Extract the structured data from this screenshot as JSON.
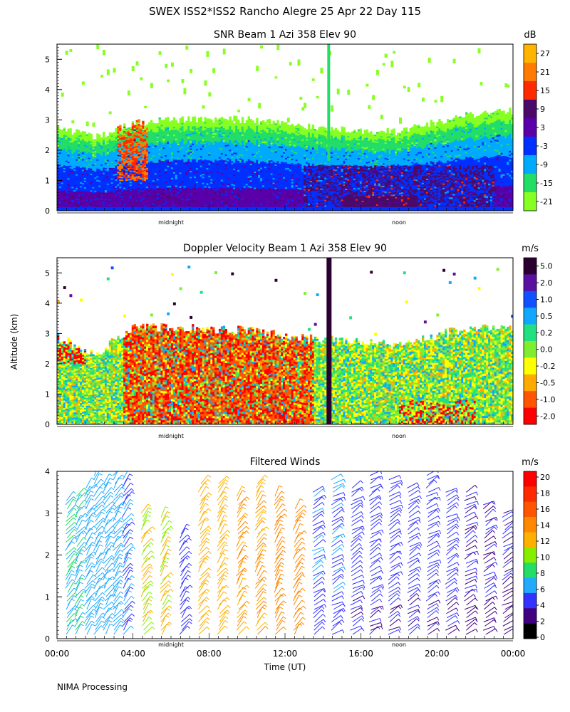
{
  "figure": {
    "title": "SWEX ISS2*ISS2 Rancho Alegre  25 Apr 22 Day 115",
    "y_axis_label": "Altitude (km)",
    "x_axis_label": "Time (UT)",
    "footer": "NIMA Processing"
  },
  "chart_data": [
    {
      "type": "heatmap",
      "title": "SNR Beam 1 Azi 358 Elev 90",
      "ylabel": "Altitude (km)",
      "ylim": [
        0,
        5.5
      ],
      "yticks": [
        0,
        1,
        2,
        3,
        4,
        5
      ],
      "xlim_hours": [
        0,
        24
      ],
      "x_markers": [
        {
          "label": "midnight",
          "hour": 6.5
        },
        {
          "label": "noon",
          "hour": 18.5
        }
      ],
      "colorbar": {
        "unit": "dB",
        "ticks": [
          "27",
          "21",
          "15",
          "9",
          "3",
          "-3",
          "-9",
          "-15",
          "-21"
        ]
      },
      "features": [
        {
          "name": "boundary_layer_top_km",
          "hours": [
            0,
            2,
            4,
            6,
            10,
            14,
            18,
            21,
            24
          ],
          "values": [
            2.8,
            2.4,
            2.9,
            3.0,
            3.0,
            2.7,
            2.6,
            3.1,
            3.3
          ]
        },
        {
          "name": "high_snr_patch",
          "hours": [
            3.2,
            4.8
          ],
          "altitude_km": [
            1.0,
            3.0
          ],
          "snr_db": 15
        }
      ]
    },
    {
      "type": "heatmap",
      "title": "Doppler Velocity Beam 1 Azi 358 Elev 90",
      "ylabel": "Altitude (km)",
      "ylim": [
        0,
        5.5
      ],
      "yticks": [
        0,
        1,
        2,
        3,
        4,
        5
      ],
      "xlim_hours": [
        0,
        24
      ],
      "x_markers": [
        {
          "label": "midnight",
          "hour": 6.5
        },
        {
          "label": "noon",
          "hour": 18.5
        }
      ],
      "colorbar": {
        "unit": "m/s",
        "ticks": [
          "5.0",
          "2.0",
          "1.0",
          "0.5",
          "0.2",
          "0.0",
          "-0.2",
          "-0.5",
          "-1.0",
          "-2.0"
        ]
      },
      "features": [
        {
          "name": "data_top_km",
          "hours": [
            0,
            2,
            4,
            6,
            10,
            14,
            18,
            21,
            24
          ],
          "values": [
            2.9,
            2.3,
            3.2,
            3.2,
            3.1,
            2.8,
            2.6,
            3.1,
            3.2
          ]
        },
        {
          "name": "vertical_spike",
          "hour": 14.3,
          "velocity_ms": 5.0
        }
      ]
    },
    {
      "type": "wind_barbs",
      "title": "Filtered Winds",
      "ylabel": "Altitude (km)",
      "xlabel": "Time (UT)",
      "ylim": [
        0,
        4
      ],
      "yticks": [
        0,
        1,
        2,
        3,
        4
      ],
      "xlim_hours": [
        0,
        24
      ],
      "xticks": [
        "00:00",
        "04:00",
        "08:00",
        "12:00",
        "16:00",
        "20:00",
        "00:00"
      ],
      "x_markers": [
        {
          "label": "midnight",
          "hour": 6.5
        },
        {
          "label": "noon",
          "hour": 18.5
        }
      ],
      "colorbar": {
        "unit": "m/s",
        "ticks": [
          "20",
          "18",
          "16",
          "14",
          "12",
          "10",
          "8",
          "6",
          "4",
          "2",
          "0"
        ]
      },
      "columns": [
        {
          "hour": 0.5,
          "top_km": 3.3,
          "speed_ms": 7
        },
        {
          "hour": 1.0,
          "top_km": 3.4,
          "speed_ms": 7
        },
        {
          "hour": 1.5,
          "top_km": 3.6,
          "speed_ms": 6
        },
        {
          "hour": 2.0,
          "top_km": 4.1,
          "speed_ms": 6
        },
        {
          "hour": 2.5,
          "top_km": 3.7,
          "speed_ms": 6
        },
        {
          "hour": 3.0,
          "top_km": 3.9,
          "speed_ms": 6
        },
        {
          "hour": 3.5,
          "top_km": 3.8,
          "speed_ms": 5
        },
        {
          "hour": 4.5,
          "top_km": 3.0,
          "speed_ms": 11
        },
        {
          "hour": 5.5,
          "top_km": 2.9,
          "speed_ms": 11
        },
        {
          "hour": 6.5,
          "top_km": 2.5,
          "speed_ms": 4
        },
        {
          "hour": 7.5,
          "top_km": 3.7,
          "speed_ms": 12
        },
        {
          "hour": 8.5,
          "top_km": 3.7,
          "speed_ms": 12
        },
        {
          "hour": 9.5,
          "top_km": 3.4,
          "speed_ms": 13
        },
        {
          "hour": 10.5,
          "top_km": 3.7,
          "speed_ms": 13
        },
        {
          "hour": 11.5,
          "top_km": 3.4,
          "speed_ms": 14
        },
        {
          "hour": 12.5,
          "top_km": 3.1,
          "speed_ms": 14
        },
        {
          "hour": 13.5,
          "top_km": 3.5,
          "speed_ms": 5
        },
        {
          "hour": 14.5,
          "top_km": 3.8,
          "speed_ms": 5
        },
        {
          "hour": 15.5,
          "top_km": 3.6,
          "speed_ms": 4
        },
        {
          "hour": 16.5,
          "top_km": 3.9,
          "speed_ms": 4
        },
        {
          "hour": 17.5,
          "top_km": 3.8,
          "speed_ms": 4
        },
        {
          "hour": 18.5,
          "top_km": 3.6,
          "speed_ms": 4
        },
        {
          "hour": 19.5,
          "top_km": 3.9,
          "speed_ms": 4
        },
        {
          "hour": 20.5,
          "top_km": 3.5,
          "speed_ms": 4
        },
        {
          "hour": 21.5,
          "top_km": 3.5,
          "speed_ms": 3
        },
        {
          "hour": 22.5,
          "top_km": 3.2,
          "speed_ms": 3
        },
        {
          "hour": 23.5,
          "top_km": 3.0,
          "speed_ms": 3
        }
      ]
    }
  ]
}
